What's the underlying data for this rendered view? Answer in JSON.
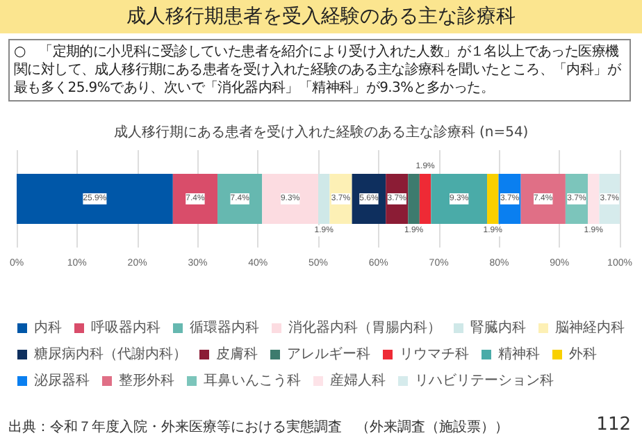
{
  "chart_data": {
    "type": "bar",
    "title": "成人移行期患者を受入経験のある主な診療科",
    "subtitle": "○　「定期的に小児科に受診していた患者を紹介により受け入れた人数」が１名以上であった医療機関に対して、成人移行期にある患者を受け入れた経験のある主な診療科を聞いたところ、「内科」が最も多く25.9%であり、次いで「消化器内科」「精神科」が9.3%と多かった。",
    "annotations": [
      "成人移行期にある患者を受け入れた経験のある主な診療科 (n=54)",
      "出典：令和７年度入院・外来医療等における実態調査　（外来調査（施設票））",
      "112"
    ],
    "categories": [
      null
    ],
    "stacked": true,
    "orientation": "horizontal",
    "grid": "x",
    "legend": "bottom",
    "tick_labels": "x",
    "xlim": [
      0,
      100
    ],
    "xticks": [
      {
        "value": 0,
        "label": "0%"
      },
      {
        "value": 10,
        "label": "10%"
      },
      {
        "value": 20,
        "label": "20%"
      },
      {
        "value": 30,
        "label": "30%"
      },
      {
        "value": 40,
        "label": "40%"
      },
      {
        "value": 50,
        "label": "50%"
      },
      {
        "value": 60,
        "label": "60%"
      },
      {
        "value": 70,
        "label": "70%"
      },
      {
        "value": 80,
        "label": "80%"
      },
      {
        "value": 90,
        "label": "90%"
      },
      {
        "value": 100,
        "label": "100%"
      }
    ],
    "series": [
      {
        "name": "内科",
        "color": "#0057a8",
        "values": [
          25.9
        ],
        "value_labels": [
          "25.9%"
        ]
      },
      {
        "name": "呼吸器内科",
        "color": "#d94d6a",
        "values": [
          7.4
        ],
        "value_labels": [
          "7.4%"
        ]
      },
      {
        "name": "循環器内科",
        "color": "#66b8b0",
        "values": [
          7.4
        ],
        "value_labels": [
          "7.4%"
        ]
      },
      {
        "name": "消化器内科（胃腸内科）",
        "color": "#fcdce1",
        "values": [
          9.3
        ],
        "value_labels": [
          "9.3%"
        ]
      },
      {
        "name": "腎臓内科",
        "color": "#cfe8e8",
        "values": [
          1.9
        ],
        "value_labels": [
          "1.9%"
        ]
      },
      {
        "name": "脳神経内科",
        "color": "#fdf0b5",
        "values": [
          3.7
        ],
        "value_labels": [
          "3.7%"
        ]
      },
      {
        "name": "糖尿病内科（代謝内科）",
        "color": "#0e2f5e",
        "values": [
          5.6
        ],
        "value_labels": [
          "5.6%"
        ]
      },
      {
        "name": "皮膚科",
        "color": "#8b1c35",
        "values": [
          3.7
        ],
        "value_labels": [
          "3.7%"
        ]
      },
      {
        "name": "アレルギー科",
        "color": "#3d7b6e",
        "values": [
          1.9
        ],
        "value_labels": [
          "1.9%"
        ]
      },
      {
        "name": "リウマチ科",
        "color": "#ee2a35",
        "values": [
          1.9
        ],
        "value_labels": [
          "1.9%"
        ]
      },
      {
        "name": "精神科",
        "color": "#4aaba8",
        "values": [
          9.3
        ],
        "value_labels": [
          "9.3%"
        ]
      },
      {
        "name": "外科",
        "color": "#f9d000",
        "values": [
          1.9
        ],
        "value_labels": [
          "1.9%"
        ]
      },
      {
        "name": "泌尿器科",
        "color": "#0a7ff0",
        "values": [
          3.7
        ],
        "value_labels": [
          "3.7%"
        ]
      },
      {
        "name": "整形外科",
        "color": "#e06f86",
        "values": [
          7.4
        ],
        "value_labels": [
          "7.4%"
        ]
      },
      {
        "name": "耳鼻いんこう科",
        "color": "#7cc5bb",
        "values": [
          3.7
        ],
        "value_labels": [
          "3.7%"
        ]
      },
      {
        "name": "産婦人科",
        "color": "#fde3e8",
        "values": [
          1.9
        ],
        "value_labels": [
          "1.9%"
        ]
      },
      {
        "name": "リハビリテーション科",
        "color": "#d6ebec",
        "values": [
          3.7
        ],
        "value_labels": [
          "3.7%"
        ]
      }
    ]
  }
}
